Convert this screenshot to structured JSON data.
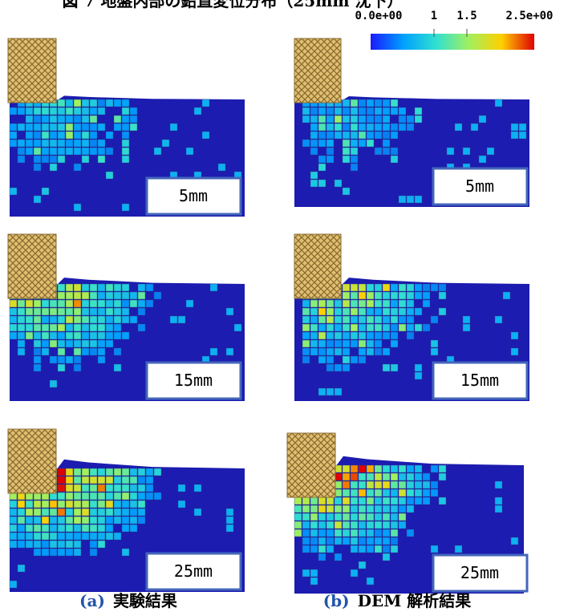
{
  "title": "図 7 地盤内部の鉛直変位分布（25mm 沈下）",
  "colorbar": {
    "labels": [
      "0.0e+00",
      "1",
      "1.5",
      "2.5e+00"
    ]
  },
  "panels": [
    {
      "label": "5mm"
    },
    {
      "label": "15mm"
    },
    {
      "label": "25mm"
    },
    {
      "label": "5mm"
    },
    {
      "label": "15mm"
    },
    {
      "label": "25mm"
    }
  ],
  "captions": [
    {
      "label": "(a)",
      "text": "実験結果"
    },
    {
      "label": "(b)",
      "text": "DEM 解析結果"
    }
  ]
}
